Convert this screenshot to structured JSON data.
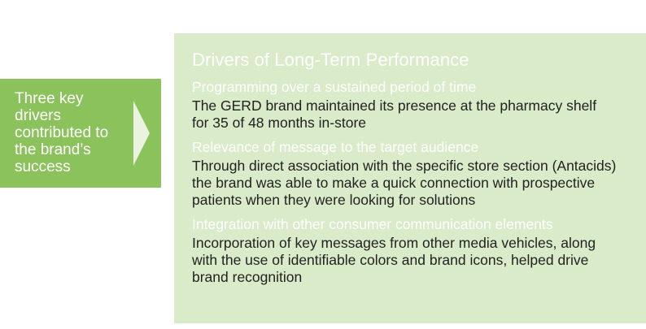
{
  "left_box": {
    "text": "Three key drivers contributed to the brand’s success"
  },
  "panel": {
    "title": "Drivers of Long-Term Performance",
    "drivers": [
      {
        "heading": "Programming over a sustained period of time",
        "body": "The GERD brand maintained its presence at the pharmacy shelf for 35 of 48 months in-store"
      },
      {
        "heading": "Relevance of message to the target audience",
        "body": "Through direct association with the specific store section (Antacids) the brand was able to make a quick connection with prospective patients when they were looking for solutions"
      },
      {
        "heading": "Integration with other consumer communication elements",
        "body": "Incorporation of key messages from other media vehicles, along with the use of identifiable colors and brand icons, helped drive brand recognition"
      }
    ]
  },
  "colors": {
    "accent_green": "#8cc25b",
    "panel_green": "#d9ebc8",
    "chevron": "#e9f3df",
    "body_text": "#222222",
    "heading_text": "#ffffff"
  },
  "icons": {
    "chevron": "chevron-right-icon"
  }
}
